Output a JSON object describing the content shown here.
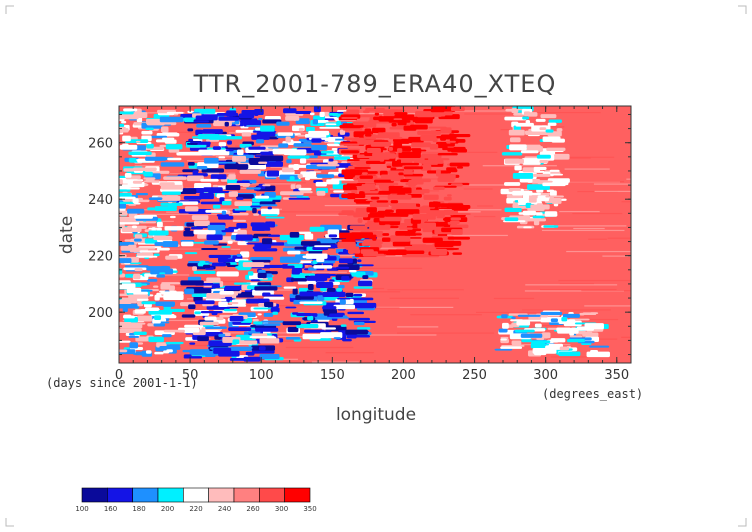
{
  "chart_data": {
    "type": "heatmap",
    "title": "TTR_2001-789_ERA40_XTEQ",
    "xlabel": "longitude",
    "ylabel": "date",
    "x_units": "(degrees_east)",
    "y_units": "(days since 2001-1-1)",
    "xlim": [
      0,
      360
    ],
    "ylim": [
      182,
      273
    ],
    "x_ticks": [
      0,
      50,
      100,
      150,
      200,
      250,
      300,
      350
    ],
    "y_ticks": [
      200,
      220,
      240,
      260
    ],
    "colorbar": {
      "levels": [
        "100",
        "160",
        "180",
        "200",
        "220",
        "240",
        "260",
        "300",
        "350"
      ],
      "colors": [
        "#0a0a9a",
        "#1414e6",
        "#1e90ff",
        "#00f0ff",
        "#ffffff",
        "#ffbcbc",
        "#ff8080",
        "#ff4a4a",
        "#ff0000"
      ]
    },
    "background_color": "#ff6060",
    "features": [
      {
        "lon": [
          48,
          110
        ],
        "day": [
          183,
          272
        ],
        "value": "160-220"
      },
      {
        "lon": [
          120,
          175
        ],
        "day": [
          190,
          230
        ],
        "value": "160-200"
      },
      {
        "lon": [
          115,
          160
        ],
        "day": [
          240,
          272
        ],
        "value": "180-240"
      },
      {
        "lon": [
          0,
          40
        ],
        "day": [
          185,
          272
        ],
        "value": "200-260"
      },
      {
        "lon": [
          160,
          240
        ],
        "day": [
          220,
          272
        ],
        "value": "300-350"
      },
      {
        "lon": [
          270,
          340
        ],
        "day": [
          185,
          200
        ],
        "value": "200-260"
      },
      {
        "lon": [
          275,
          310
        ],
        "day": [
          230,
          272
        ],
        "value": "220-260"
      }
    ]
  }
}
